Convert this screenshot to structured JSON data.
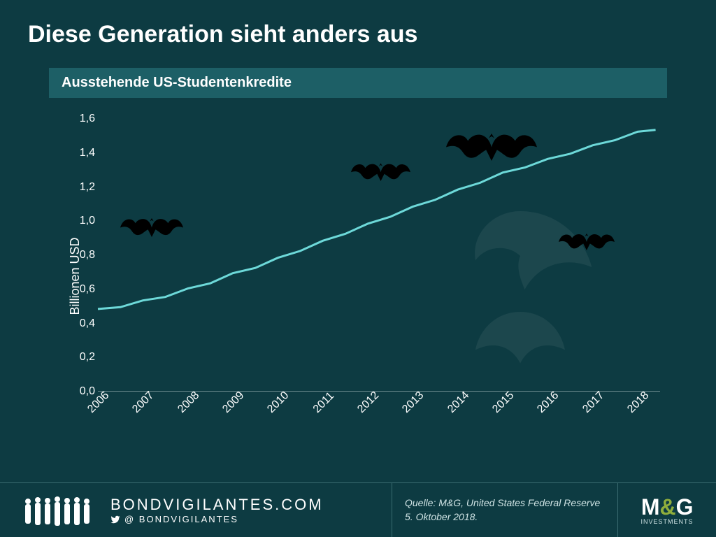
{
  "title": "Diese Generation sieht anders aus",
  "subtitle": "Ausstehende US-Studentenkredite",
  "chart": {
    "type": "line",
    "ylabel": "Billionen USD",
    "ylim": [
      0.0,
      1.6
    ],
    "ytick_step": 0.2,
    "yticks": [
      "0,0",
      "0,2",
      "0,4",
      "0,6",
      "0,8",
      "1,0",
      "1,2",
      "1,4",
      "1,6"
    ],
    "xticks": [
      "2006",
      "2007",
      "2008",
      "2009",
      "2010",
      "2011",
      "2012",
      "2013",
      "2014",
      "2015",
      "2016",
      "2017",
      "2018"
    ],
    "line_color": "#6dd9d9",
    "line_width": 3,
    "axis_color": "#6e8d90",
    "background_color": "#0d3b42",
    "text_color": "#ffffff",
    "tick_fontsize": 16,
    "label_fontsize": 18,
    "data": [
      {
        "x": 2006.0,
        "y": 0.48
      },
      {
        "x": 2006.5,
        "y": 0.5
      },
      {
        "x": 2007.0,
        "y": 0.53
      },
      {
        "x": 2007.5,
        "y": 0.56
      },
      {
        "x": 2008.0,
        "y": 0.6
      },
      {
        "x": 2008.5,
        "y": 0.64
      },
      {
        "x": 2009.0,
        "y": 0.69
      },
      {
        "x": 2009.5,
        "y": 0.73
      },
      {
        "x": 2010.0,
        "y": 0.78
      },
      {
        "x": 2010.5,
        "y": 0.83
      },
      {
        "x": 2011.0,
        "y": 0.88
      },
      {
        "x": 2011.5,
        "y": 0.93
      },
      {
        "x": 2012.0,
        "y": 0.98
      },
      {
        "x": 2012.5,
        "y": 1.03
      },
      {
        "x": 2013.0,
        "y": 1.08
      },
      {
        "x": 2013.5,
        "y": 1.13
      },
      {
        "x": 2014.0,
        "y": 1.18
      },
      {
        "x": 2014.5,
        "y": 1.23
      },
      {
        "x": 2015.0,
        "y": 1.28
      },
      {
        "x": 2015.5,
        "y": 1.32
      },
      {
        "x": 2016.0,
        "y": 1.36
      },
      {
        "x": 2016.5,
        "y": 1.4
      },
      {
        "x": 2017.0,
        "y": 1.44
      },
      {
        "x": 2017.5,
        "y": 1.48
      },
      {
        "x": 2018.0,
        "y": 1.52
      },
      {
        "x": 2018.4,
        "y": 1.54
      }
    ],
    "bats": [
      {
        "left_pct": 4,
        "top_pct": 34,
        "size": 90
      },
      {
        "left_pct": 45,
        "top_pct": 14,
        "size": 85
      },
      {
        "left_pct": 62,
        "top_pct": 2,
        "size": 130
      },
      {
        "left_pct": 82,
        "top_pct": 40,
        "size": 80
      }
    ]
  },
  "footer": {
    "brand_url": "BONDVIGILANTES.COM",
    "brand_twitter": "@ BONDVIGILANTES",
    "source_line1": "Quelle: M&G, United States Federal Reserve",
    "source_line2": "5. Oktober 2018.",
    "logo_main_1": "M",
    "logo_main_amp": "&",
    "logo_main_2": "G",
    "logo_sub": "INVESTMENTS"
  },
  "colors": {
    "background": "#0d3b42",
    "subtitle_bar": "#1d5f66",
    "footer_border": "#3a6b70",
    "accent_green": "#8fae3c",
    "bat": "#000000"
  }
}
